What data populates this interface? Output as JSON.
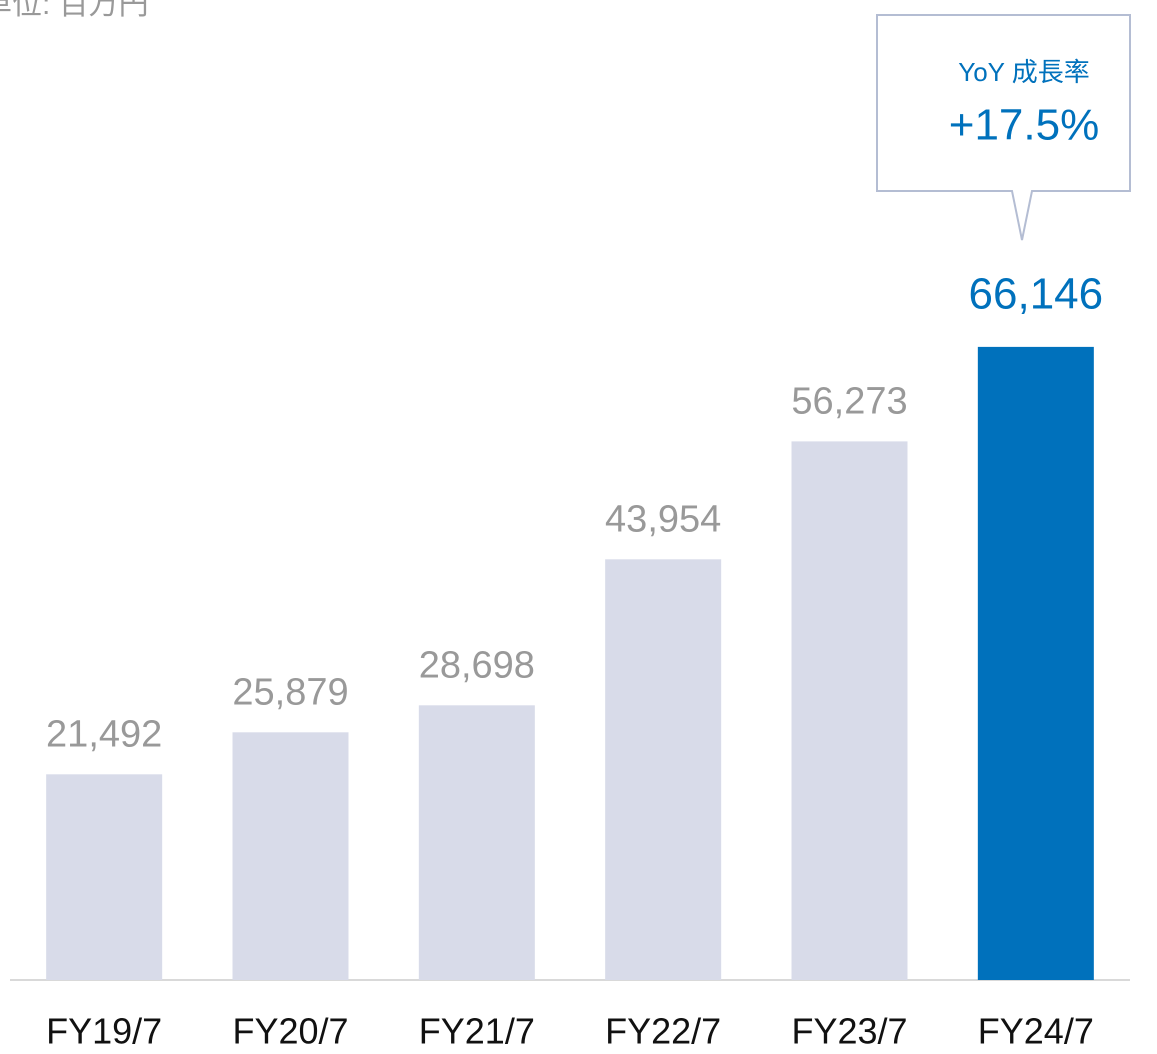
{
  "chart_data": {
    "type": "bar",
    "title": "単位: 百万円",
    "categories": [
      "FY19/7",
      "FY20/7",
      "FY21/7",
      "FY22/7",
      "FY23/7",
      "FY24/7"
    ],
    "values": [
      21492,
      25879,
      28698,
      43954,
      56273,
      66146
    ],
    "value_labels": [
      "21,492",
      "25,879",
      "28,698",
      "43,954",
      "56,273",
      "66,146"
    ],
    "colors": [
      "#d8dbe9",
      "#d8dbe9",
      "#d8dbe9",
      "#d8dbe9",
      "#d8dbe9",
      "#0071bc"
    ],
    "label_colors": [
      "#999999",
      "#999999",
      "#999999",
      "#999999",
      "#999999",
      "#0071bc"
    ],
    "ylim": [
      0,
      70000
    ],
    "annotation": {
      "title": "YoY 成長率",
      "text": "+17.5%",
      "color": "#0071bc"
    }
  }
}
